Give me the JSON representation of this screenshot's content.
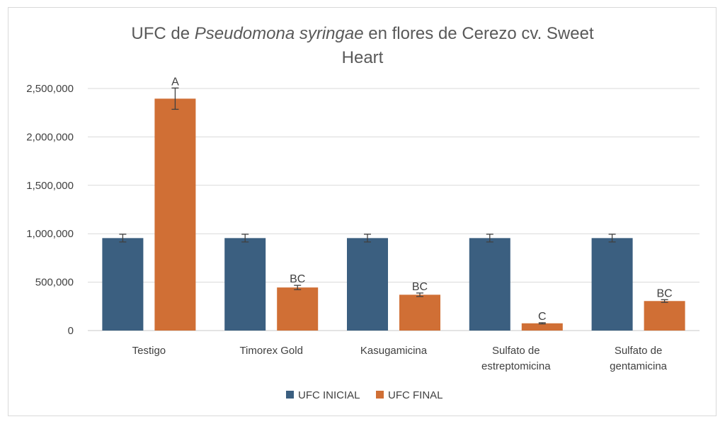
{
  "chart_data": {
    "type": "bar",
    "title_part1": "UFC de ",
    "title_italic": "Pseudomona syringae",
    "title_part2": " en flores de Cerezo cv. Sweet",
    "title_line2": "Heart",
    "categories": [
      [
        "Testigo"
      ],
      [
        "Timorex Gold"
      ],
      [
        "Kasugamicina"
      ],
      [
        "Sulfato de",
        "estreptomicina"
      ],
      [
        "Sulfato de",
        "gentamicina"
      ]
    ],
    "series": [
      {
        "name": "UFC INICIAL",
        "color": "#3b5f80",
        "values": [
          955000,
          955000,
          955000,
          955000,
          955000
        ],
        "errors": [
          40000,
          40000,
          40000,
          40000,
          40000
        ],
        "labels": [
          "",
          "",
          "",
          "",
          ""
        ]
      },
      {
        "name": "UFC FINAL",
        "color": "#d06f35",
        "values": [
          2395000,
          445000,
          370000,
          75000,
          305000
        ],
        "errors": [
          110000,
          22000,
          18000,
          6000,
          14000
        ],
        "labels": [
          "A",
          "BC",
          "BC",
          "C",
          "BC"
        ]
      }
    ],
    "ylim": [
      0,
      2500000
    ],
    "yticks": [
      "0",
      "500,000",
      "1,000,000",
      "1,500,000",
      "2,000,000",
      "2,500,000"
    ],
    "ytick_values": [
      0,
      500000,
      1000000,
      1500000,
      2000000,
      2500000
    ],
    "grid": true,
    "legend_position": "bottom"
  }
}
